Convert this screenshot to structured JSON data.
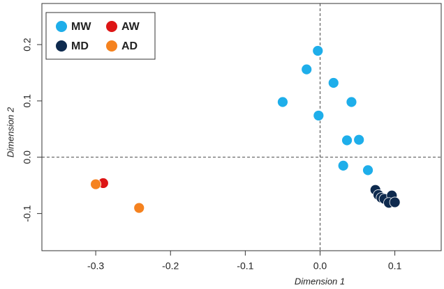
{
  "chart_data": {
    "type": "scatter",
    "x_label": "Dimension 1",
    "y_label": "Dimension 2",
    "xlim": [
      -0.372,
      0.162
    ],
    "ylim": [
      -0.166,
      0.273
    ],
    "xticks": [
      -0.3,
      -0.2,
      -0.1,
      {
        "value": 0,
        "label": "0.0"
      },
      0.1
    ],
    "yticks": [
      -0.1,
      {
        "value": 0,
        "label": "0.0"
      },
      0.1,
      0.2
    ],
    "legend": "top-left",
    "series": [
      {
        "name": "MW",
        "color": "#1eaeea",
        "x": [
          -0.003,
          -0.018,
          0.018,
          -0.05,
          0.042,
          -0.002,
          0.036,
          0.052,
          0.031,
          0.064
        ],
        "y": [
          0.189,
          0.156,
          0.132,
          0.098,
          0.098,
          0.074,
          0.03,
          0.031,
          -0.015,
          -0.023
        ]
      },
      {
        "name": "MD",
        "color": "#0e2a4e",
        "x": [
          0.074,
          0.078,
          0.082,
          0.086,
          0.096,
          0.092,
          0.1
        ],
        "y": [
          -0.058,
          -0.067,
          -0.072,
          -0.074,
          -0.068,
          -0.081,
          -0.08
        ]
      },
      {
        "name": "AW",
        "color": "#dd1515",
        "x": [
          -0.29
        ],
        "y": [
          -0.046
        ]
      },
      {
        "name": "AD",
        "color": "#f5821f",
        "x": [
          -0.3,
          -0.242
        ],
        "y": [
          -0.048,
          -0.09
        ]
      }
    ]
  }
}
